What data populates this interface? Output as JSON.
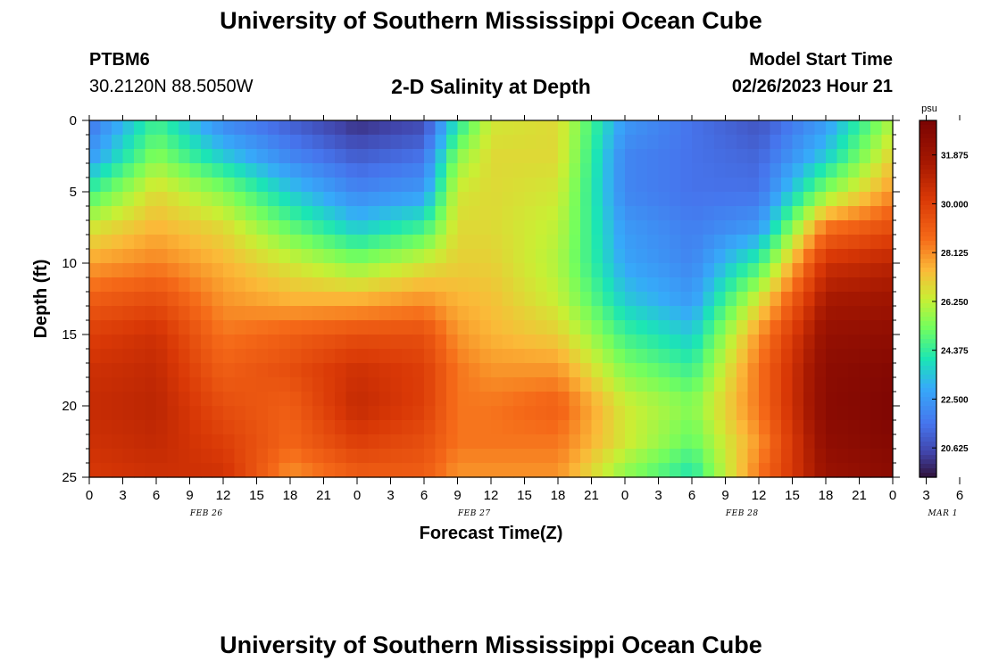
{
  "header": {
    "title": "University of Southern Mississippi Ocean Cube",
    "station_id": "PTBM6",
    "station_coords": "30.2120N  88.5050W",
    "plot_title": "2-D Salinity at Depth",
    "model_start_label": "Model Start Time",
    "model_start_value": "02/26/2023 Hour 21"
  },
  "footer": {
    "title": "University of Southern Mississippi Ocean Cube"
  },
  "chart_data": {
    "type": "heatmap",
    "xlabel": "Forecast Time(Z)",
    "ylabel": "Depth (ft)",
    "x_hours": [
      0,
      72
    ],
    "x_tick_step_hours": 3,
    "x_tick_labels": [
      "0",
      "3",
      "6",
      "9",
      "12",
      "15",
      "18",
      "21",
      "0",
      "3",
      "6",
      "9",
      "12",
      "15",
      "18",
      "21",
      "0",
      "3",
      "6",
      "9",
      "12",
      "15",
      "18",
      "21",
      "0",
      "3",
      "6"
    ],
    "date_labels": [
      {
        "label": "FEB 26",
        "hour": 10.5
      },
      {
        "label": "FEB 27",
        "hour": 34.5
      },
      {
        "label": "FEB 28",
        "hour": 58.5
      },
      {
        "label": "MAR 1",
        "hour": 76.5
      }
    ],
    "y_range": [
      0,
      25
    ],
    "y_ticks": [
      0,
      5,
      10,
      15,
      20,
      25
    ],
    "colorbar": {
      "unit": "psu",
      "min": 19.5,
      "max": 33.2,
      "tick_values": [
        31.875,
        30.0,
        28.125,
        26.25,
        24.375,
        22.5,
        20.625
      ],
      "tick_labels": [
        "31.875",
        "30.000",
        "28.125",
        "26.250",
        "24.375",
        "22.500",
        "20.625"
      ]
    },
    "depths": [
      0,
      2.5,
      5,
      7.5,
      10,
      12.5,
      15,
      17.5,
      20,
      22.5,
      25
    ],
    "times": [
      0,
      6,
      12,
      18,
      24,
      30,
      33,
      36,
      42,
      48,
      54,
      60,
      66,
      72
    ],
    "values": [
      [
        21.5,
        24.5,
        22.0,
        21.0,
        20.0,
        20.5,
        24.0,
        26.5,
        26.8,
        22.5,
        21.5,
        20.8,
        22.5,
        26.0
      ],
      [
        22.5,
        25.5,
        23.5,
        22.0,
        21.0,
        21.5,
        25.5,
        26.8,
        26.8,
        22.0,
        21.5,
        21.2,
        23.5,
        27.0
      ],
      [
        24.5,
        26.8,
        25.5,
        23.5,
        22.0,
        22.5,
        26.5,
        26.8,
        26.5,
        22.0,
        21.5,
        21.5,
        25.5,
        28.0
      ],
      [
        26.5,
        27.5,
        26.8,
        25.0,
        23.5,
        24.5,
        26.8,
        26.8,
        26.2,
        22.5,
        21.8,
        22.5,
        28.5,
        29.5
      ],
      [
        27.8,
        28.3,
        27.5,
        26.5,
        25.5,
        26.5,
        27.0,
        27.0,
        26.0,
        22.8,
        22.0,
        24.5,
        30.5,
        31.0
      ],
      [
        29.0,
        29.5,
        28.0,
        27.5,
        27.5,
        28.0,
        27.5,
        27.3,
        26.3,
        23.5,
        22.5,
        26.5,
        31.5,
        31.8
      ],
      [
        30.0,
        30.5,
        28.5,
        29.0,
        29.5,
        29.5,
        28.0,
        27.5,
        27.0,
        24.5,
        23.5,
        28.0,
        32.2,
        32.4
      ],
      [
        30.5,
        30.8,
        29.0,
        29.5,
        30.5,
        30.0,
        28.5,
        28.0,
        28.0,
        25.5,
        24.5,
        28.5,
        32.5,
        32.8
      ],
      [
        30.7,
        31.0,
        29.5,
        29.0,
        30.8,
        30.0,
        28.5,
        28.5,
        29.0,
        26.5,
        25.5,
        28.5,
        32.6,
        33.0
      ],
      [
        30.5,
        30.8,
        30.0,
        28.8,
        30.0,
        29.5,
        28.5,
        28.5,
        28.5,
        26.5,
        25.0,
        28.0,
        32.4,
        32.8
      ],
      [
        30.2,
        30.5,
        30.5,
        28.0,
        29.0,
        29.0,
        28.0,
        28.0,
        28.0,
        25.5,
        24.0,
        28.5,
        32.0,
        32.5
      ]
    ]
  }
}
